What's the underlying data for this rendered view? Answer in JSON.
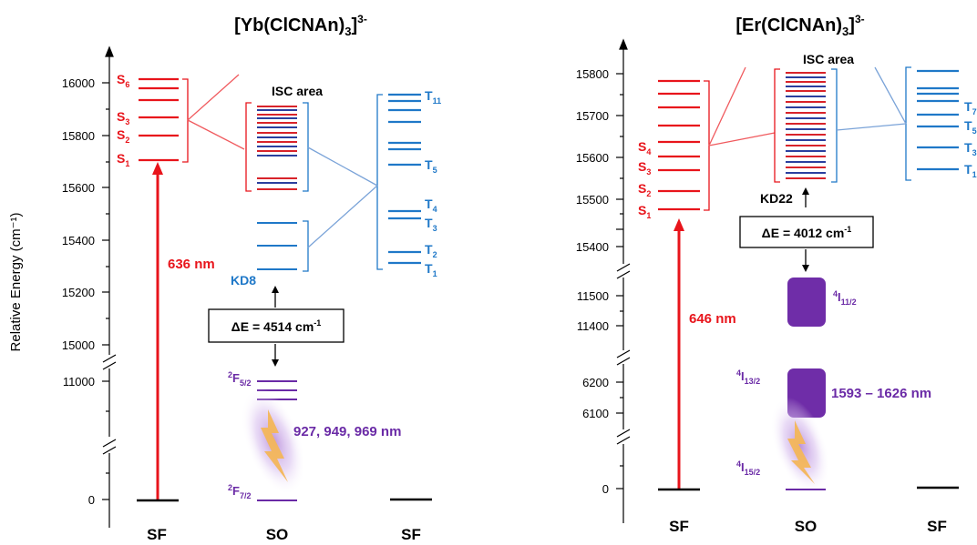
{
  "colors": {
    "singlet": "#e8141b",
    "triplet": "#1f78c8",
    "lanthanide": "#6a2aa6",
    "lanthanide_box": "#6f2da8",
    "connector_red": "#f05a5e",
    "connector_blue": "#7aa3d8",
    "glow": "#c9a9e6",
    "bolt": "#f3b65a",
    "isc_red": "#d8232a",
    "isc_blue": "#2b3f9e"
  },
  "icons": {
    "lightning": "lightning-icon"
  },
  "y_axis_label": "Relative Energy (cm⁻¹)",
  "left": {
    "title_pre": "[Yb(ClCNAn)",
    "title_sub": "3",
    "title_post": "]",
    "title_sup": "3-",
    "ticks": [
      "16000",
      "15800",
      "15600",
      "15400",
      "15200",
      "15000",
      "11000",
      "0"
    ],
    "column_labels": [
      "SF",
      "SO",
      "SF"
    ],
    "isc_label": "ISC area",
    "kd_label": "KD8",
    "delta_e": "ΔE = 4514 cm",
    "delta_e_sup": "-1",
    "wavelength_abs": "636 nm",
    "wavelength_em": "927, 949, 969 nm",
    "singlets": [
      {
        "base": "S",
        "sub": "6"
      },
      {
        "base": "S",
        "sub": "3"
      },
      {
        "base": "S",
        "sub": "2"
      },
      {
        "base": "S",
        "sub": "1"
      }
    ],
    "triplets": [
      {
        "base": "T",
        "sub": "11"
      },
      {
        "base": "T",
        "sub": "5"
      },
      {
        "base": "T",
        "sub": "4"
      },
      {
        "base": "T",
        "sub": "3"
      },
      {
        "base": "T",
        "sub": "2"
      },
      {
        "base": "T",
        "sub": "1"
      }
    ],
    "f_states": [
      {
        "sup": "2",
        "base": "F",
        "sub": "5/2"
      },
      {
        "sup": "2",
        "base": "F",
        "sub": "7/2"
      }
    ]
  },
  "right": {
    "title_pre": "[Er(ClCNAn)",
    "title_sub": "3",
    "title_post": "]",
    "title_sup": "3-",
    "ticks": [
      "15800",
      "15700",
      "15600",
      "15500",
      "15400",
      "11500",
      "11400",
      "6200",
      "6100",
      "0"
    ],
    "column_labels": [
      "SF",
      "SO",
      "SF"
    ],
    "isc_label": "ISC area",
    "kd_label": "KD22",
    "delta_e": "ΔE = 4012 cm",
    "delta_e_sup": "-1",
    "wavelength_abs": "646 nm",
    "wavelength_em": "1593 – 1626 nm",
    "singlets": [
      {
        "base": "S",
        "sub": "4"
      },
      {
        "base": "S",
        "sub": "3"
      },
      {
        "base": "S",
        "sub": "2"
      },
      {
        "base": "S",
        "sub": "1"
      }
    ],
    "triplets_partial": [
      {
        "base": "T",
        "sub": "7"
      },
      {
        "base": "T",
        "sub": "5"
      },
      {
        "base": "T",
        "sub": "3"
      },
      {
        "base": "T",
        "sub": "1"
      }
    ],
    "i_states": [
      {
        "sup": "4",
        "base": "I",
        "sub": "11/2"
      },
      {
        "sup": "4",
        "base": "I",
        "sub": "13/2"
      },
      {
        "sup": "4",
        "base": "I",
        "sub": "15/2"
      }
    ]
  }
}
